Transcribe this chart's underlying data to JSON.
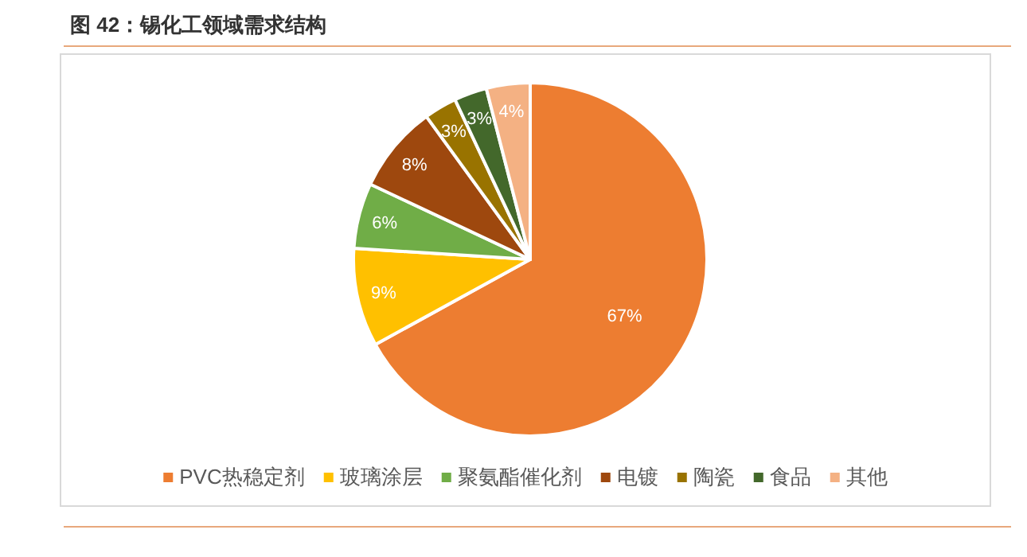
{
  "chart_data": {
    "type": "pie",
    "title": "图 42：锡化工领域需求结构",
    "categories": [
      "PVC热稳定剂",
      "玻璃涂层",
      "聚氨酯催化剂",
      "电镀",
      "陶瓷",
      "食品",
      "其他"
    ],
    "values": [
      67,
      9,
      6,
      8,
      3,
      3,
      4
    ],
    "colors": [
      "#ed7d31",
      "#ffc000",
      "#70ad47",
      "#9e480e",
      "#997300",
      "#43682b",
      "#f4b183"
    ],
    "value_labels": [
      "67%",
      "9%",
      "6%",
      "8%",
      "3%",
      "3%",
      "4%"
    ],
    "legend": "bottom"
  }
}
